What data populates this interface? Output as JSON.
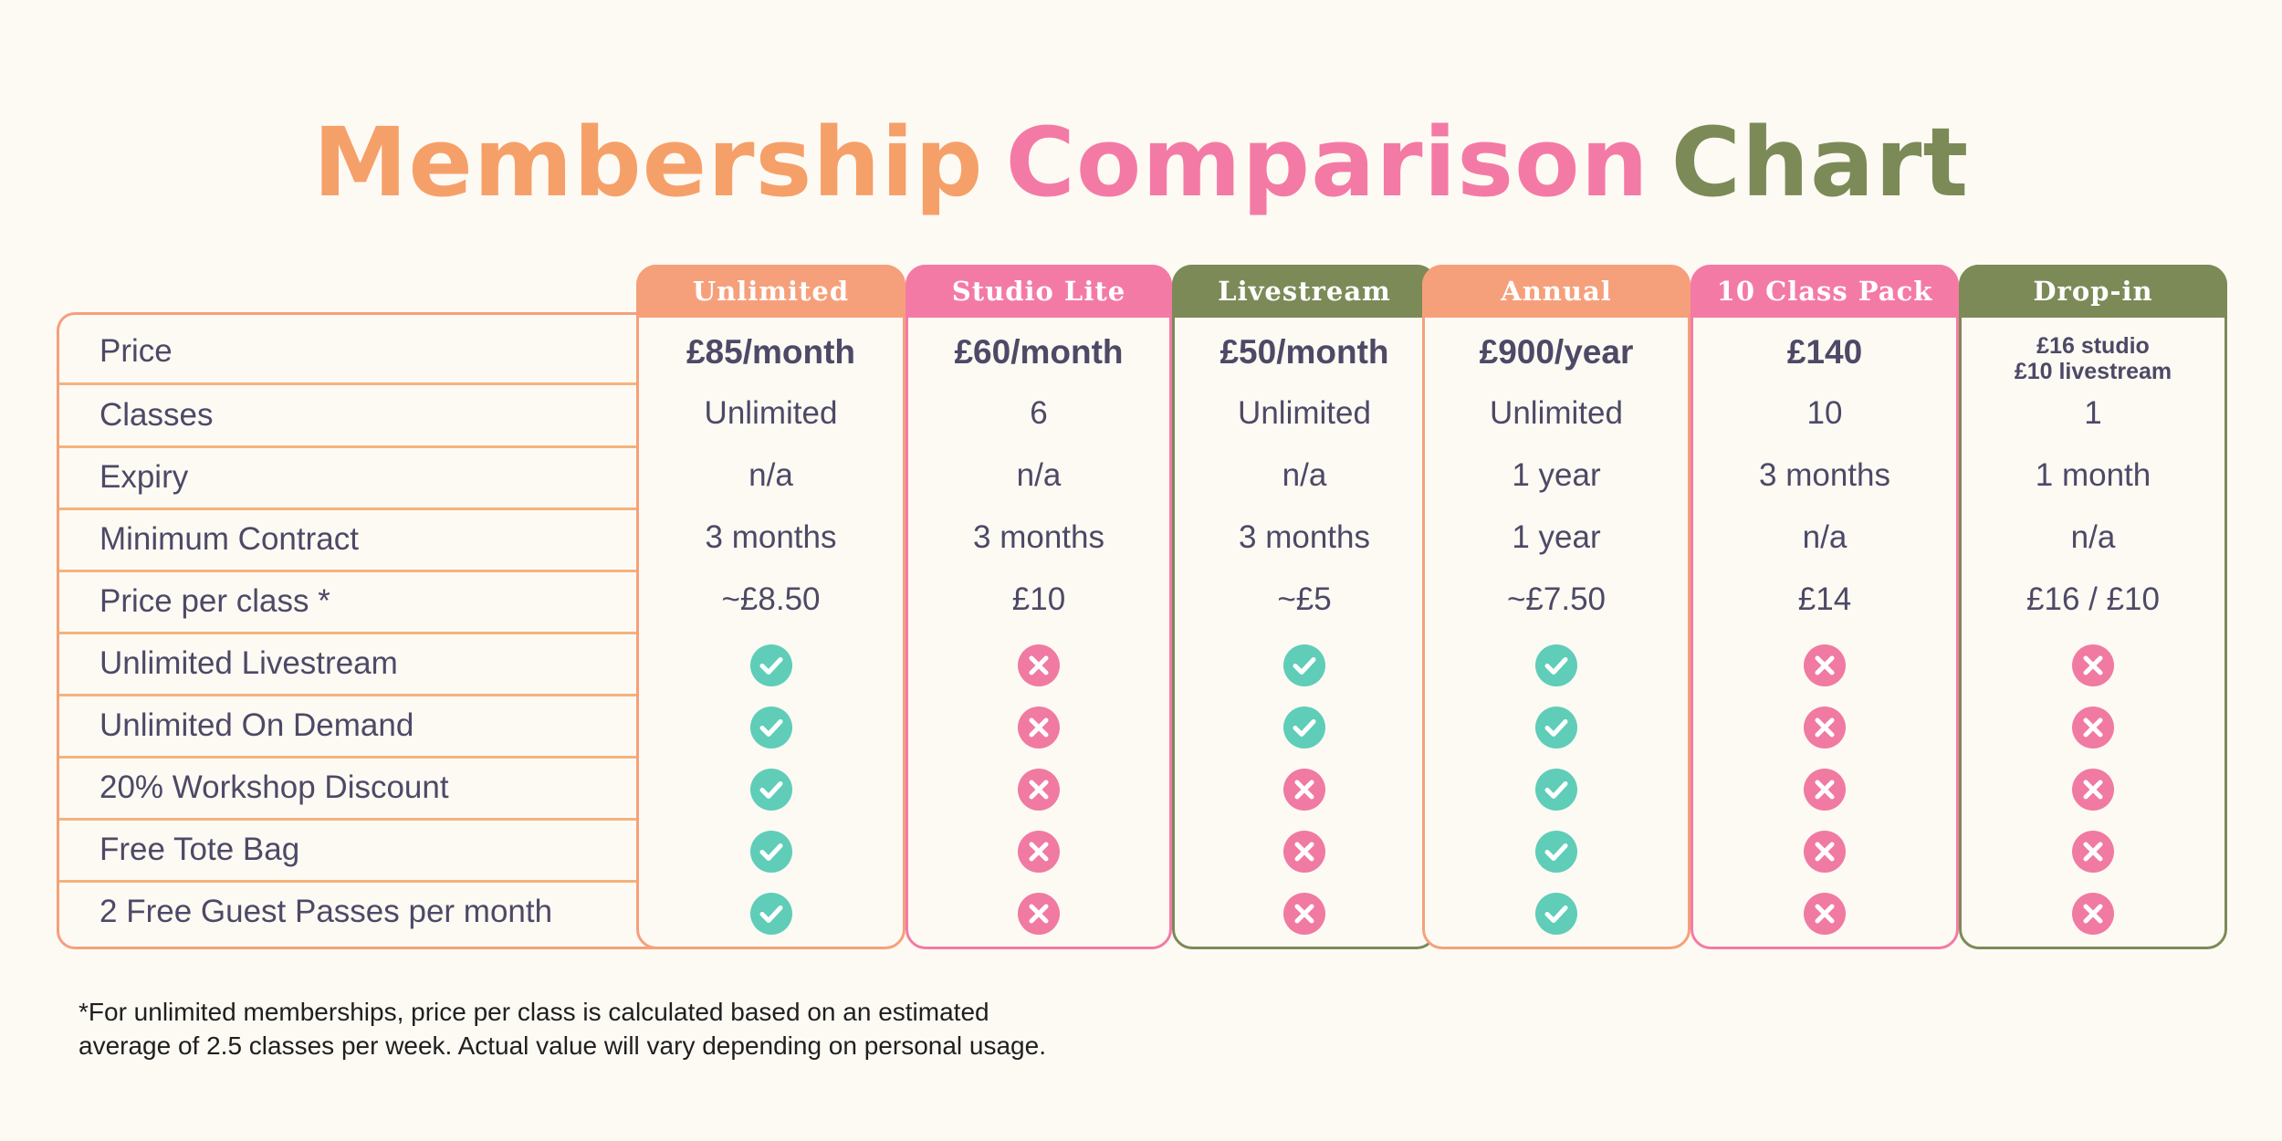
{
  "title": {
    "part1": "Membership",
    "part2": "Comparison",
    "part3": "Chart"
  },
  "colors": {
    "orange": "#f6a07b",
    "pink": "#f47aa6",
    "olive": "#7c8a57",
    "check": "#5fcdb8",
    "cross": "#f07aa2",
    "text": "#4d4966"
  },
  "row_labels": [
    "Price",
    "Classes",
    "Expiry",
    "Minimum Contract",
    "Price per class *",
    "Unlimited Livestream",
    "Unlimited On Demand",
    "20% Workshop Discount",
    "Free Tote Bag",
    "2 Free Guest Passes per month"
  ],
  "plans": [
    {
      "name": "Unlimited",
      "color": "orange",
      "price": "£85/month",
      "classes": "Unlimited",
      "expiry": "n/a",
      "contract": "3 months",
      "per_class": "~£8.50",
      "features": [
        true,
        true,
        true,
        true,
        true
      ]
    },
    {
      "name": "Studio Lite",
      "color": "pink",
      "price": "£60/month",
      "classes": "6",
      "expiry": "n/a",
      "contract": "3 months",
      "per_class": "£10",
      "features": [
        false,
        false,
        false,
        false,
        false
      ]
    },
    {
      "name": "Livestream",
      "color": "olive",
      "price": "£50/month",
      "classes": "Unlimited",
      "expiry": "n/a",
      "contract": "3 months",
      "per_class": "~£5",
      "features": [
        true,
        true,
        false,
        false,
        false
      ]
    },
    {
      "name": "Annual",
      "color": "orange",
      "price": "£900/year",
      "classes": "Unlimited",
      "expiry": "1 year",
      "contract": "1 year",
      "per_class": "~£7.50",
      "features": [
        true,
        true,
        true,
        true,
        true
      ]
    },
    {
      "name": "10 Class Pack",
      "color": "pink",
      "price": "£140",
      "classes": "10",
      "expiry": "3 months",
      "contract": "n/a",
      "per_class": "£14",
      "features": [
        false,
        false,
        false,
        false,
        false
      ]
    },
    {
      "name": "Drop-in",
      "color": "olive",
      "price": "£16 studio\n£10 livestream",
      "price_line1": "£16 studio",
      "price_line2": "£10 livestream",
      "classes": "1",
      "expiry": "1 month",
      "contract": "n/a",
      "per_class": "£16 / £10",
      "features": [
        false,
        false,
        false,
        false,
        false
      ]
    }
  ],
  "footnote": {
    "line1": "*For unlimited memberships, price per class is calculated based on an estimated",
    "line2": "average of 2.5 classes per week. Actual value will vary depending on personal usage."
  }
}
